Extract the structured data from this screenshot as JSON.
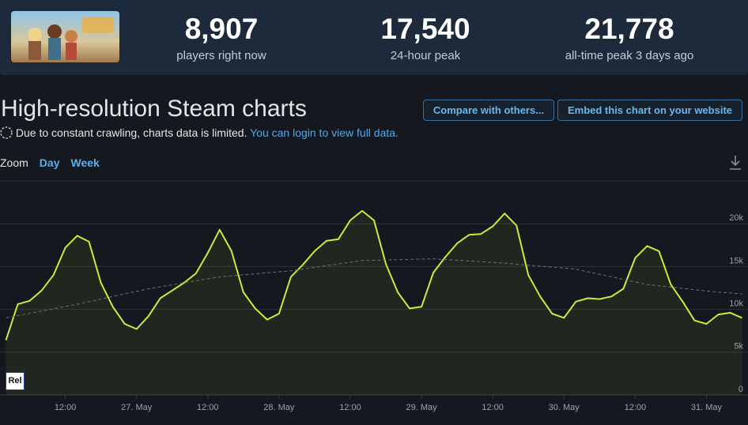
{
  "header": {
    "stats": [
      {
        "value": "8,907",
        "label": "players right now"
      },
      {
        "value": "17,540",
        "label": "24-hour peak"
      },
      {
        "value": "21,778",
        "label": "all-time peak 3 days ago"
      }
    ]
  },
  "title": "High-resolution Steam charts",
  "buttons": [
    "Compare with others...",
    "Embed this chart on your website"
  ],
  "notice": {
    "text": "Due to constant crawling, charts data is limited.",
    "link": "You can login to view full data."
  },
  "zoom": {
    "label": "Zoom",
    "options": [
      "Day",
      "Week"
    ]
  },
  "badge": "Rel",
  "chart_data": {
    "type": "line",
    "x": [
      "26 May 02:00",
      "26 May 04:00",
      "26 May 06:00",
      "26 May 08:00",
      "26 May 10:00",
      "26 May 12:00",
      "26 May 14:00",
      "26 May 16:00",
      "26 May 18:00",
      "26 May 20:00",
      "26 May 22:00",
      "27 May 00:00",
      "27 May 02:00",
      "27 May 04:00",
      "27 May 06:00",
      "27 May 08:00",
      "27 May 10:00",
      "27 May 12:00",
      "27 May 14:00",
      "27 May 16:00",
      "27 May 18:00",
      "27 May 20:00",
      "27 May 22:00",
      "28 May 00:00",
      "28 May 02:00",
      "28 May 04:00",
      "28 May 06:00",
      "28 May 08:00",
      "28 May 10:00",
      "28 May 12:00",
      "28 May 14:00",
      "28 May 16:00",
      "28 May 18:00",
      "28 May 20:00",
      "28 May 22:00",
      "29 May 00:00",
      "29 May 02:00",
      "29 May 04:00",
      "29 May 06:00",
      "29 May 08:00",
      "29 May 10:00",
      "29 May 12:00",
      "29 May 14:00",
      "29 May 16:00",
      "29 May 18:00",
      "29 May 20:00",
      "29 May 22:00",
      "30 May 00:00",
      "30 May 02:00",
      "30 May 04:00",
      "30 May 06:00",
      "30 May 08:00",
      "30 May 10:00",
      "30 May 12:00",
      "30 May 14:00",
      "30 May 16:00",
      "30 May 18:00",
      "30 May 20:00",
      "30 May 22:00",
      "31 May 00:00",
      "31 May 02:00",
      "31 May 04:00",
      "31 May 06:00"
    ],
    "series": [
      {
        "color": "#c9ec3e",
        "values": [
          6400,
          10600,
          11000,
          12200,
          14000,
          17200,
          18600,
          17900,
          13100,
          10300,
          8300,
          7700,
          9200,
          11300,
          12200,
          13100,
          14200,
          16600,
          19300,
          16800,
          12000,
          10100,
          8800,
          9500,
          13800,
          15200,
          16800,
          18000,
          18200,
          20400,
          21500,
          20400,
          15300,
          12000,
          10100,
          10300,
          14300,
          16100,
          17700,
          18700,
          18800,
          19700,
          21200,
          19800,
          14000,
          11500,
          9500,
          9000,
          10900,
          11300,
          11200,
          11500,
          12400,
          16000,
          17400,
          16800,
          12900,
          10900,
          8700,
          8300,
          9400,
          9600,
          9000
        ]
      },
      {
        "color": "#6d7079",
        "dashed": true,
        "x": [
          "26 May 02:00",
          "26 May 14:00",
          "27 May 02:00",
          "27 May 14:00",
          "28 May 02:00",
          "28 May 14:00",
          "29 May 02:00",
          "29 May 14:00",
          "30 May 02:00",
          "30 May 14:00",
          "31 May 02:00",
          "31 May 06:00"
        ],
        "values": [
          9000,
          10600,
          12400,
          13800,
          14500,
          15700,
          15900,
          15400,
          14700,
          12900,
          12000,
          11800
        ]
      }
    ],
    "xlim": [
      "26 May 01:00",
      "31 May 07:00"
    ],
    "xticks": [
      {
        "value": "26 May 12:00",
        "label": "12:00"
      },
      {
        "value": "27 May 00:00",
        "label": "27. May"
      },
      {
        "value": "27 May 12:00",
        "label": "12:00"
      },
      {
        "value": "28 May 00:00",
        "label": "28. May"
      },
      {
        "value": "28 May 12:00",
        "label": "12:00"
      },
      {
        "value": "29 May 00:00",
        "label": "29. May"
      },
      {
        "value": "29 May 12:00",
        "label": "12:00"
      },
      {
        "value": "30 May 00:00",
        "label": "30. May"
      },
      {
        "value": "30 May 12:00",
        "label": "12:00"
      },
      {
        "value": "31 May 00:00",
        "label": "31. May"
      }
    ],
    "ylim": [
      0,
      25000
    ],
    "yticks": [
      0,
      {
        "value": 5000,
        "label": "5k"
      },
      {
        "value": 10000,
        "label": "10k"
      },
      {
        "value": 15000,
        "label": "15k"
      },
      {
        "value": 20000,
        "label": "20k"
      }
    ],
    "grid": true
  }
}
